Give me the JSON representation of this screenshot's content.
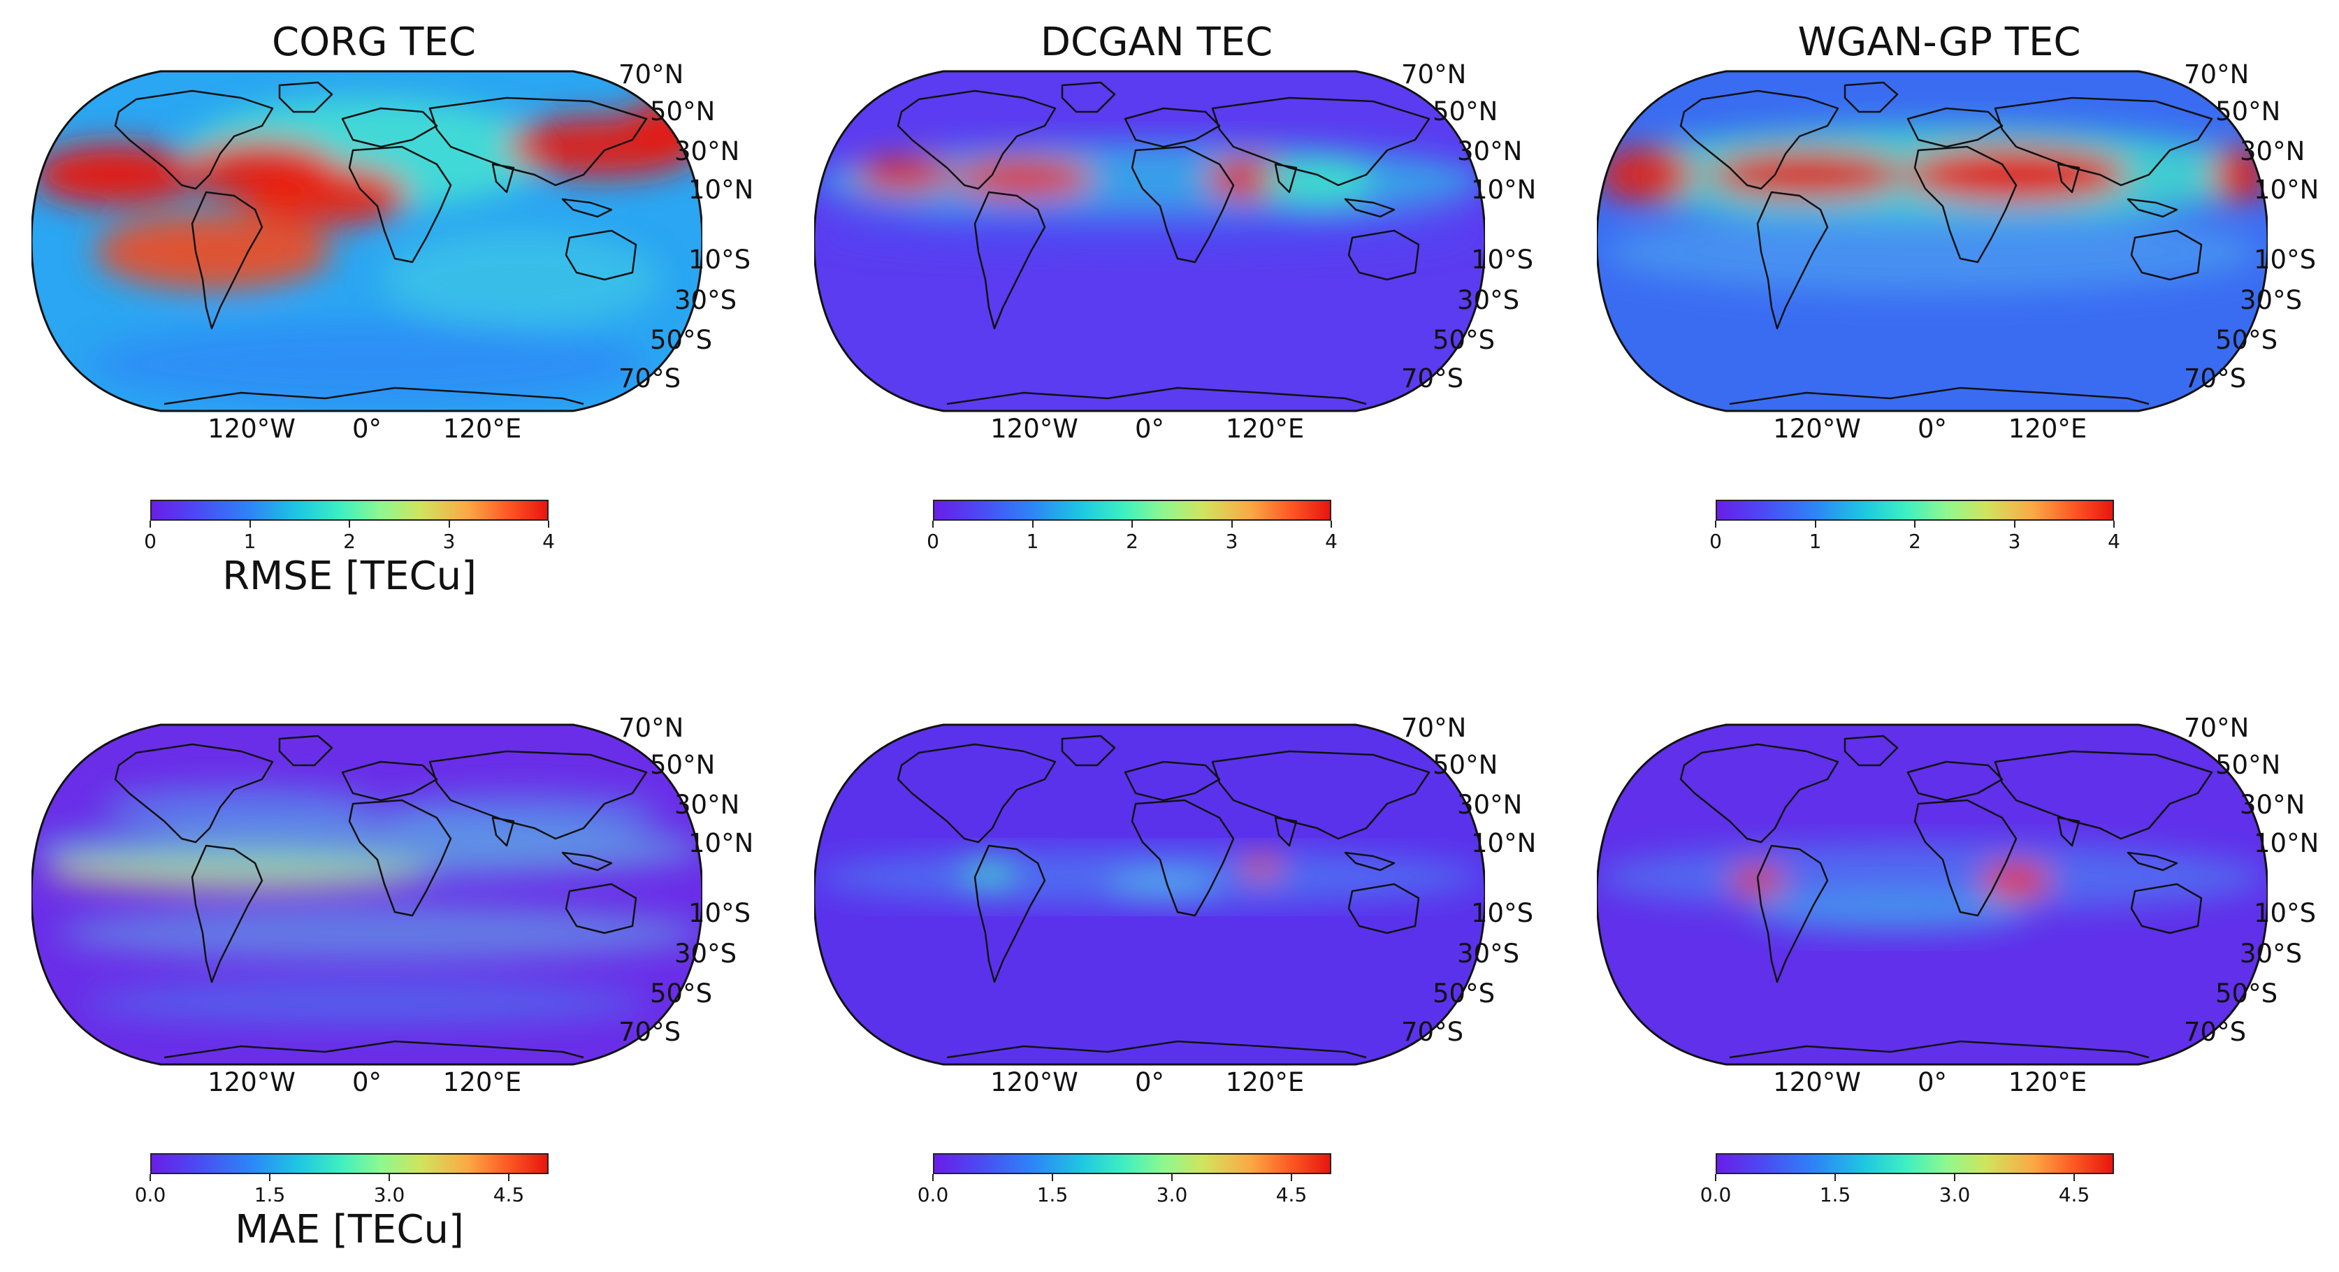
{
  "lat_labels": [
    "70°N",
    "50°N",
    "30°N",
    "10°N",
    "10°S",
    "30°S",
    "50°S",
    "70°S"
  ],
  "lon_labels": [
    "120°W",
    "0°",
    "120°E"
  ],
  "rows": [
    {
      "metric": "RMSE",
      "colorbar_label": "RMSE [TECu]",
      "colorbar_ticks": [
        "0",
        "1",
        "2",
        "3",
        "4"
      ],
      "colorbar_range": [
        0,
        4
      ],
      "panels": [
        {
          "title": "CORG TEC",
          "show_colorbar_label": true
        },
        {
          "title": "DCGAN TEC",
          "show_colorbar_label": false
        },
        {
          "title": "WGAN-GP TEC",
          "show_colorbar_label": false
        }
      ]
    },
    {
      "metric": "MAE",
      "colorbar_label": "MAE [TECu]",
      "colorbar_ticks": [
        "0.0",
        "1.5",
        "3.0",
        "4.5"
      ],
      "colorbar_range": [
        0,
        5
      ],
      "panels": [
        {
          "title": "",
          "show_colorbar_label": true
        },
        {
          "title": "",
          "show_colorbar_label": false
        },
        {
          "title": "",
          "show_colorbar_label": false
        }
      ]
    }
  ],
  "colormap": "rainbow",
  "colors": {
    "coastline": "#111111",
    "ocean_low": "#6a1ee8",
    "high": "#e8160e"
  }
}
